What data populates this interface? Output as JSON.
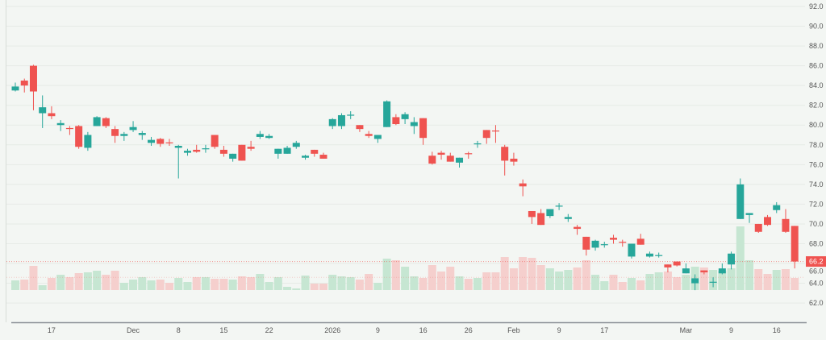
{
  "chart_data": {
    "type": "candlestick",
    "title": "",
    "xlabel": "",
    "ylabel": "",
    "ylim": [
      61.2,
      92.6
    ],
    "y_ticks": [
      "92.0",
      "90.0",
      "88.0",
      "86.0",
      "84.0",
      "82.0",
      "80.0",
      "78.0",
      "76.0",
      "74.0",
      "72.0",
      "70.0",
      "68.0",
      "66.0",
      "64.0",
      "62.0"
    ],
    "grid": "horizontal",
    "colors": {
      "up": "#26a69a",
      "down": "#ef5350",
      "up_volume": "#c6e6d2",
      "down_volume": "#f5cfcd",
      "background": "#f3f6f3"
    },
    "last_price": {
      "value": 66.2,
      "label": "66.2"
    },
    "secondary_line": 64.6,
    "x_ticks": [
      {
        "index": 4,
        "label": "17"
      },
      {
        "index": 13,
        "label": "Dec"
      },
      {
        "index": 18,
        "label": "8"
      },
      {
        "index": 23,
        "label": "15"
      },
      {
        "index": 28,
        "label": "22"
      },
      {
        "index": 35,
        "label": "2026"
      },
      {
        "index": 40,
        "label": "9"
      },
      {
        "index": 45,
        "label": "16"
      },
      {
        "index": 50,
        "label": "26"
      },
      {
        "index": 55,
        "label": "Feb"
      },
      {
        "index": 60,
        "label": "9"
      },
      {
        "index": 65,
        "label": "17"
      },
      {
        "index": 74,
        "label": "Mar"
      },
      {
        "index": 79,
        "label": "9"
      },
      {
        "index": 84,
        "label": "16"
      }
    ],
    "ohlcv_fields": [
      "open",
      "high",
      "low",
      "close",
      "volume"
    ],
    "candles": [
      [
        83.5,
        84.3,
        83.4,
        83.9,
        12
      ],
      [
        84.5,
        84.7,
        83.3,
        84.0,
        13
      ],
      [
        86.0,
        86.1,
        81.5,
        83.4,
        30
      ],
      [
        81.2,
        83.0,
        79.7,
        81.8,
        6
      ],
      [
        81.2,
        81.9,
        80.6,
        80.9,
        15
      ],
      [
        80.0,
        80.5,
        79.4,
        80.2,
        19
      ],
      [
        79.7,
        79.9,
        79.0,
        79.6,
        16
      ],
      [
        79.9,
        80.0,
        77.6,
        77.8,
        21
      ],
      [
        77.7,
        79.3,
        77.4,
        79.0,
        22
      ],
      [
        79.9,
        80.9,
        79.9,
        80.8,
        24
      ],
      [
        80.7,
        80.8,
        79.7,
        79.9,
        19
      ],
      [
        79.6,
        79.9,
        78.2,
        78.9,
        24
      ],
      [
        78.9,
        79.3,
        78.4,
        79.1,
        9
      ],
      [
        79.5,
        80.4,
        79.3,
        79.8,
        13
      ],
      [
        79.0,
        79.4,
        78.5,
        79.2,
        16
      ],
      [
        78.2,
        78.8,
        77.9,
        78.5,
        12
      ],
      [
        78.6,
        78.7,
        77.8,
        78.1,
        13
      ],
      [
        78.25,
        78.6,
        77.9,
        78.15,
        9
      ],
      [
        77.7,
        78.0,
        74.6,
        77.9,
        15
      ],
      [
        77.2,
        77.6,
        76.9,
        77.4,
        10
      ],
      [
        77.5,
        78.0,
        77.2,
        77.3,
        16
      ],
      [
        77.55,
        78.0,
        77.2,
        77.65,
        16
      ],
      [
        79.0,
        79.0,
        77.6,
        77.8,
        14
      ],
      [
        77.5,
        77.9,
        76.8,
        77.1,
        14
      ],
      [
        76.6,
        77.1,
        76.3,
        77.1,
        13
      ],
      [
        78.0,
        78.0,
        76.4,
        76.4,
        17
      ],
      [
        77.8,
        78.4,
        77.4,
        77.6,
        16
      ],
      [
        78.8,
        79.4,
        78.6,
        79.1,
        20
      ],
      [
        78.7,
        79.1,
        78.6,
        78.9,
        10
      ],
      [
        77.1,
        77.6,
        76.6,
        77.6,
        16
      ],
      [
        77.1,
        77.9,
        77.1,
        77.7,
        4
      ],
      [
        77.8,
        78.4,
        77.6,
        78.2,
        2
      ],
      [
        76.7,
        77.0,
        76.5,
        76.9,
        18
      ],
      [
        77.5,
        77.5,
        76.8,
        77.1,
        8
      ],
      [
        77.0,
        77.2,
        76.6,
        76.6,
        8
      ],
      [
        79.9,
        80.7,
        79.6,
        80.6,
        19
      ],
      [
        79.9,
        81.2,
        79.6,
        81.0,
        17
      ],
      [
        80.95,
        81.4,
        80.6,
        81.05,
        16
      ],
      [
        80.0,
        80.0,
        79.3,
        79.6,
        13
      ],
      [
        79.1,
        79.4,
        78.7,
        78.9,
        20
      ],
      [
        78.6,
        79.0,
        78.2,
        79.0,
        9
      ],
      [
        79.8,
        82.5,
        79.8,
        82.4,
        39
      ],
      [
        80.8,
        81.1,
        80.0,
        80.1,
        37
      ],
      [
        80.6,
        81.3,
        80.1,
        81.1,
        29
      ],
      [
        79.9,
        80.8,
        79.1,
        80.3,
        17
      ],
      [
        80.7,
        80.7,
        78.0,
        78.7,
        15
      ],
      [
        76.9,
        77.3,
        76.0,
        76.1,
        31
      ],
      [
        77.2,
        77.4,
        76.5,
        77.0,
        23
      ],
      [
        76.9,
        77.2,
        76.3,
        76.3,
        29
      ],
      [
        76.2,
        76.7,
        75.7,
        76.7,
        17
      ],
      [
        77.15,
        77.3,
        76.6,
        77.05,
        14
      ],
      [
        78.05,
        78.4,
        77.7,
        78.15,
        15
      ],
      [
        79.5,
        79.5,
        78.1,
        78.7,
        22
      ],
      [
        79.45,
        80.0,
        78.2,
        79.35,
        22
      ],
      [
        77.8,
        78.0,
        74.9,
        76.4,
        41
      ],
      [
        76.6,
        77.2,
        75.9,
        76.3,
        27
      ],
      [
        74.1,
        74.5,
        72.8,
        73.8,
        41
      ],
      [
        71.3,
        71.3,
        70.0,
        70.7,
        40
      ],
      [
        71.1,
        71.5,
        69.9,
        69.9,
        31
      ],
      [
        70.8,
        71.5,
        70.6,
        71.5,
        27
      ],
      [
        71.75,
        72.1,
        71.4,
        71.85,
        23
      ],
      [
        70.5,
        71.0,
        70.2,
        70.7,
        25
      ],
      [
        69.7,
        69.9,
        68.9,
        69.5,
        28
      ],
      [
        68.7,
        68.7,
        66.8,
        67.4,
        37
      ],
      [
        67.6,
        68.4,
        67.3,
        68.3,
        19
      ],
      [
        67.85,
        68.2,
        67.6,
        67.95,
        11
      ],
      [
        68.6,
        68.9,
        68.0,
        68.4,
        19
      ],
      [
        68.2,
        68.4,
        67.7,
        68.1,
        10
      ],
      [
        66.7,
        68.0,
        66.5,
        68.0,
        15
      ],
      [
        68.5,
        69.0,
        67.9,
        67.9,
        12
      ],
      [
        66.7,
        67.2,
        66.6,
        67.0,
        20
      ],
      [
        66.75,
        67.1,
        66.6,
        66.85,
        22
      ],
      [
        65.9,
        65.9,
        65.1,
        65.6,
        23
      ],
      [
        66.2,
        66.2,
        65.7,
        65.8,
        16
      ],
      [
        65.0,
        66.0,
        65.0,
        65.5,
        19
      ],
      [
        64.0,
        64.9,
        63.3,
        64.5,
        29
      ],
      [
        65.3,
        65.3,
        64.9,
        65.1,
        28
      ],
      [
        64.05,
        64.6,
        63.6,
        64.15,
        25
      ],
      [
        65.0,
        66.0,
        64.9,
        65.5,
        24
      ],
      [
        65.9,
        67.2,
        65.4,
        67.0,
        27
      ],
      [
        70.5,
        74.6,
        70.5,
        74.0,
        79
      ],
      [
        70.9,
        71.1,
        70.1,
        71.1,
        37
      ],
      [
        70.0,
        70.0,
        69.1,
        69.2,
        26
      ],
      [
        70.7,
        70.9,
        69.8,
        69.9,
        20
      ],
      [
        71.4,
        72.2,
        71.1,
        71.9,
        25
      ],
      [
        70.5,
        71.5,
        69.1,
        69.2,
        26
      ],
      [
        69.8,
        69.8,
        65.5,
        66.2,
        15
      ]
    ]
  }
}
